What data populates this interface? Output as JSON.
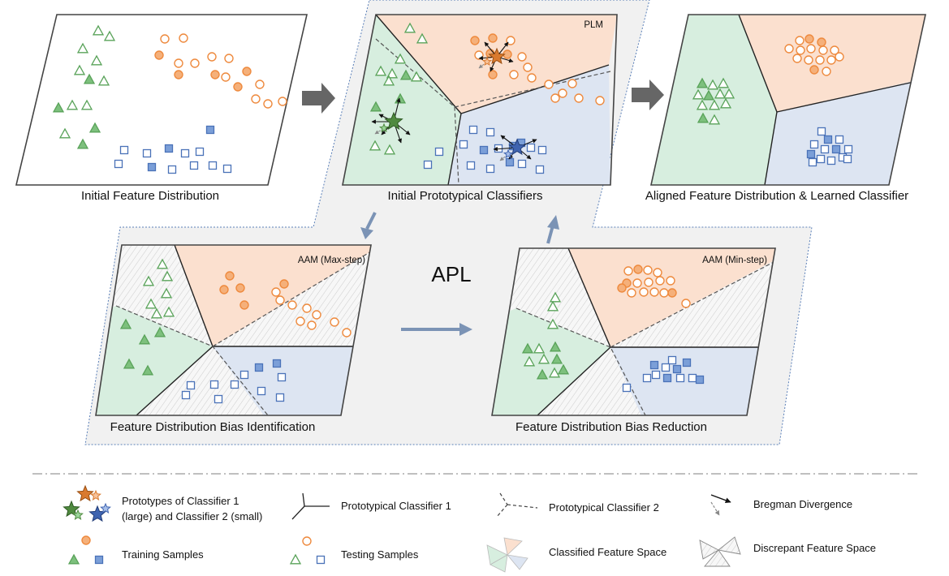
{
  "captions": {
    "panel_initial": "Initial Feature Distribution",
    "panel_prototypical": "Initial Prototypical Classifiers",
    "panel_aligned": "Aligned Feature Distribution & Learned Classifier",
    "panel_identification": "Feature Distribution Bias Identification",
    "panel_reduction": "Feature Distribution Bias Reduction"
  },
  "tags": {
    "plm": "PLM",
    "aam_max": "AAM (Max-step)",
    "aam_min": "AAM (Min-step)",
    "apl": "APL"
  },
  "legend": {
    "prototypes_line1": "Prototypes of Classifier 1",
    "prototypes_line2": "(large) and Classifier 2 (small)",
    "classifier1": "Prototypical Classifier 1",
    "classifier2": "Prototypical Classifier 2",
    "bregman": "Bregman Divergence",
    "training": "Training Samples",
    "testing": "Testing Samples",
    "classified_space": "Classified Feature Space",
    "discrepant_space": "Discrepant Feature Space"
  },
  "colors": {
    "orange": "#ee8a3e",
    "orange_fill": "#f5b07a",
    "green": "#5aa35a",
    "green_fill": "#7dc07d",
    "blue": "#4a72b8",
    "blue_fill": "#7b9fd8",
    "region_orange": "#fbe0cf",
    "region_green": "#d7eedf",
    "region_blue": "#dde5f2",
    "apl_bg": "#f1f1f1",
    "arrow": "#7b93b5",
    "dark_arrow": "#666666"
  }
}
